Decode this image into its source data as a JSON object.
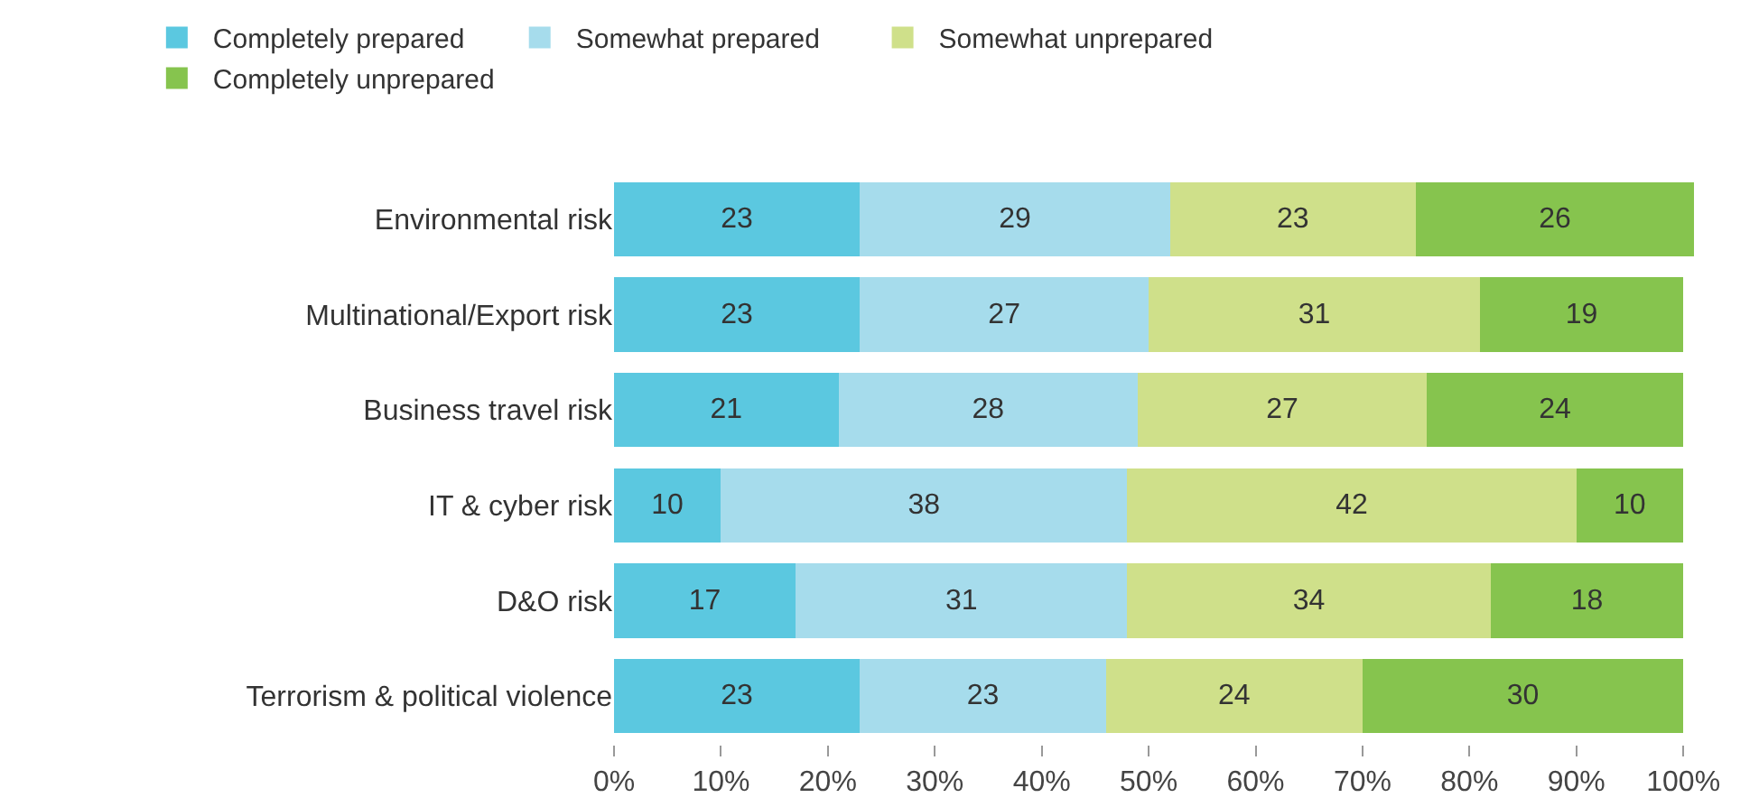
{
  "chart_data": {
    "type": "bar",
    "orientation": "horizontal",
    "stacked": true,
    "data_labels": true,
    "legend": "top",
    "grid": false,
    "categories": [
      "Environmental risk",
      "Multinational/Export risk",
      "Business travel risk",
      "IT & cyber risk",
      "D&O risk",
      "Terrorism & political violence"
    ],
    "series": [
      {
        "name": "Completely prepared",
        "color": "#5bc8e0",
        "values": [
          23,
          23,
          21,
          10,
          17,
          23
        ]
      },
      {
        "name": "Somewhat prepared",
        "color": "#a6dcec",
        "values": [
          29,
          27,
          28,
          38,
          31,
          23
        ]
      },
      {
        "name": "Somewhat unprepared",
        "color": "#cfe08a",
        "values": [
          23,
          31,
          27,
          42,
          34,
          24
        ]
      },
      {
        "name": "Completely unprepared",
        "color": "#86c44e",
        "values": [
          26,
          19,
          24,
          10,
          18,
          30
        ]
      }
    ],
    "xlim": [
      0,
      101
    ],
    "xticks": [
      {
        "value": 0,
        "label": "0%"
      },
      {
        "value": 10,
        "label": "10%"
      },
      {
        "value": 20,
        "label": "20%"
      },
      {
        "value": 30,
        "label": "30%"
      },
      {
        "value": 40,
        "label": "40%"
      },
      {
        "value": 50,
        "label": "50%"
      },
      {
        "value": 60,
        "label": "60%"
      },
      {
        "value": 70,
        "label": "70%"
      },
      {
        "value": 80,
        "label": "80%"
      },
      {
        "value": 90,
        "label": "90%"
      },
      {
        "value": 100,
        "label": "100%"
      }
    ]
  }
}
